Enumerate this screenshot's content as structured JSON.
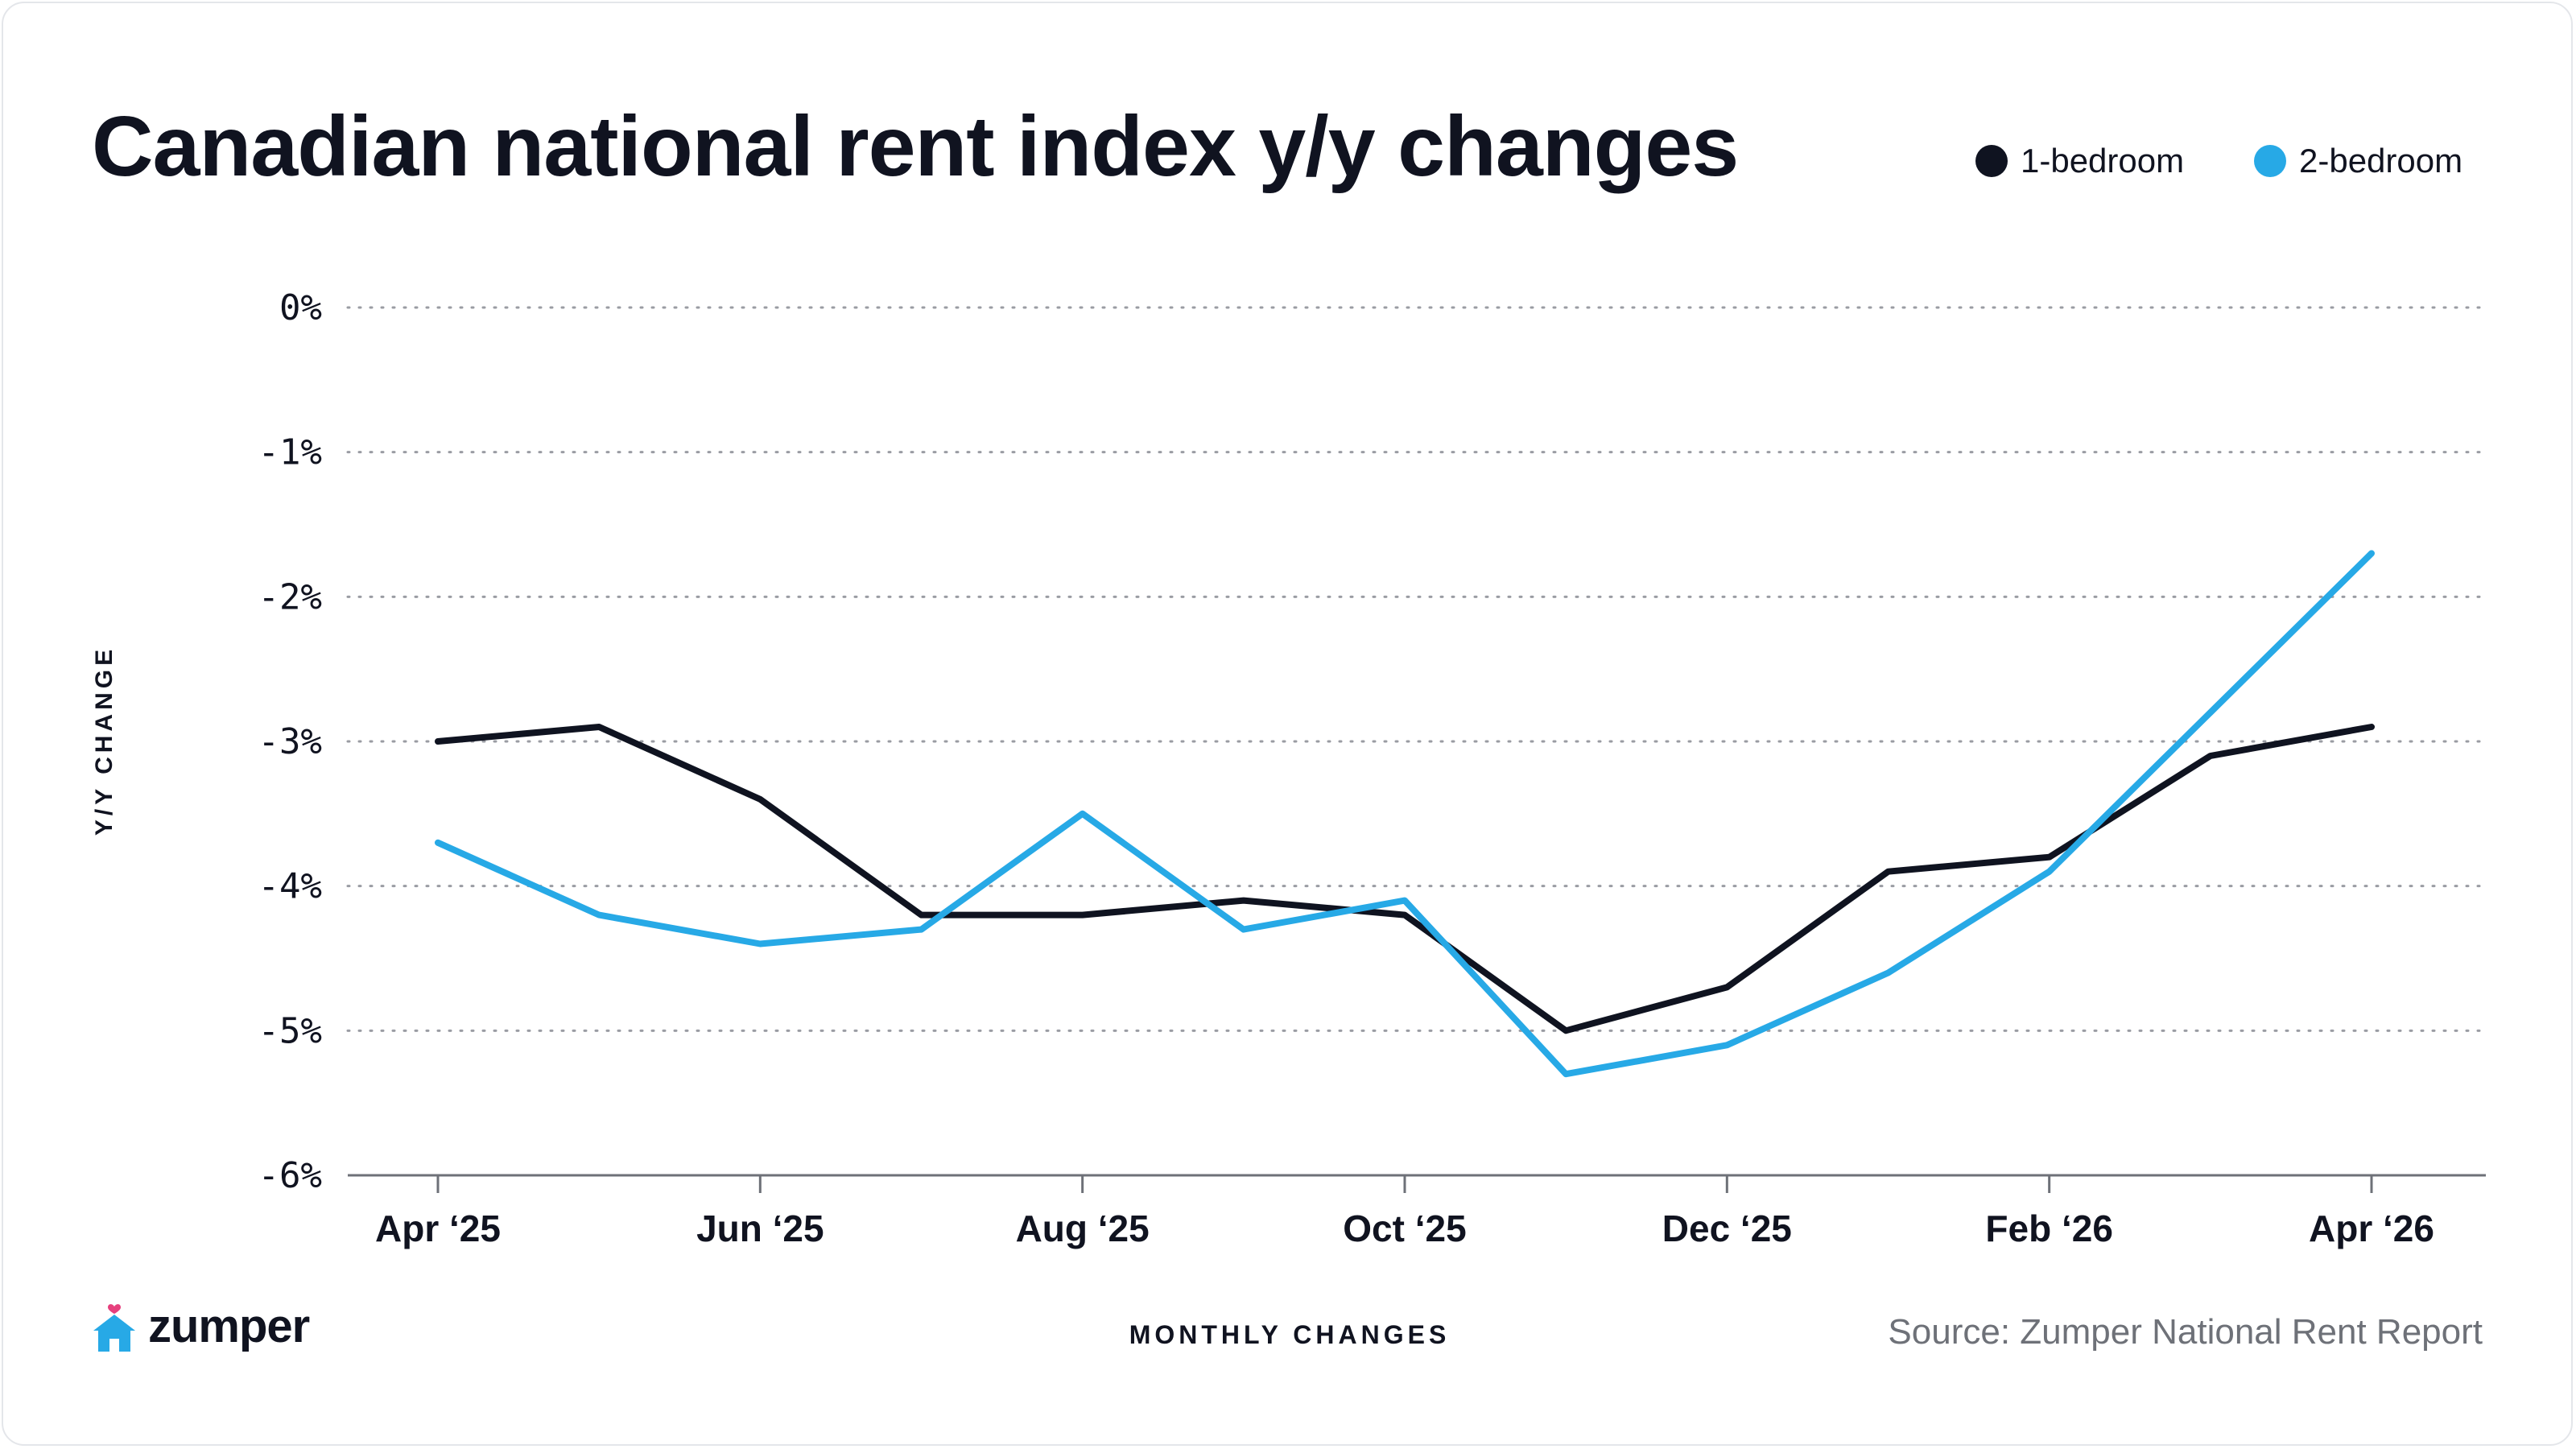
{
  "title": "Canadian national rent index y/y changes",
  "legend": [
    {
      "label": "1-bedroom",
      "color": "#0f1320"
    },
    {
      "label": "2-bedroom",
      "color": "#27a9e6"
    }
  ],
  "footer": {
    "logo_text": "zumper",
    "x_axis_caption": "MONTHLY CHANGES",
    "source": "Source: Zumper National Rent Report"
  },
  "chart_data": {
    "type": "line",
    "title": "Canadian national rent index y/y changes",
    "xlabel": "MONTHLY CHANGES",
    "ylabel": "Y/Y CHANGE",
    "x": [
      "Apr 2025",
      "May 2025",
      "Jun 2025",
      "Jul 2025",
      "Aug 2025",
      "Sep 2025",
      "Oct 2025",
      "Nov 2025",
      "Dec 2025",
      "Jan 2026",
      "Feb 2026",
      "Mar 2026",
      "Apr 2026"
    ],
    "x_tick_labels": [
      "Apr ‘25",
      "Jun ‘25",
      "Aug ‘25",
      "Oct ‘25",
      "Dec ‘25",
      "Feb ‘26",
      "Apr ‘26"
    ],
    "x_tick_indices": [
      0,
      2,
      4,
      6,
      8,
      10,
      12
    ],
    "y_tick_labels": [
      "0%",
      "-1%",
      "-2%",
      "-3%",
      "-4%",
      "-5%",
      "-6%"
    ],
    "y_tick_values": [
      0,
      -1,
      -2,
      -3,
      -4,
      -5,
      -6
    ],
    "ylim": [
      -6,
      0
    ],
    "grid": "horizontal dotted",
    "legend_position": "top-right",
    "series": [
      {
        "name": "1-bedroom",
        "color": "#0f1320",
        "values": [
          -3.0,
          -2.9,
          -3.4,
          -4.2,
          -4.2,
          -4.1,
          -4.2,
          -5.0,
          -4.7,
          -3.9,
          -3.8,
          -3.1,
          -2.9
        ]
      },
      {
        "name": "2-bedroom",
        "color": "#27a9e6",
        "values": [
          -3.7,
          -4.2,
          -4.4,
          -4.3,
          -3.5,
          -4.3,
          -4.1,
          -5.3,
          -5.1,
          -4.6,
          -3.9,
          -2.8,
          -1.7
        ]
      }
    ]
  }
}
